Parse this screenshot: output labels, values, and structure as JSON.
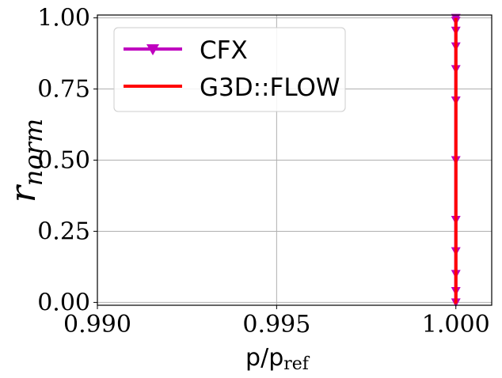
{
  "chart_data": {
    "type": "line",
    "title": "",
    "xlabel_main": "p/p",
    "xlabel_sub": "ref",
    "ylabel_main": "r",
    "ylabel_sub": "norm",
    "xlim": [
      0.99,
      1.001
    ],
    "ylim": [
      -0.01,
      1.01
    ],
    "xticks": [
      0.99,
      0.995,
      1.0
    ],
    "xtick_labels": [
      "0.990",
      "0.995",
      "1.000"
    ],
    "yticks": [
      0.0,
      0.25,
      0.5,
      0.75,
      1.0
    ],
    "ytick_labels": [
      "0.00",
      "0.25",
      "0.50",
      "0.75",
      "1.00"
    ],
    "grid": true,
    "legend_position": "top-left",
    "series": [
      {
        "name": "CFX",
        "color": "#bf00bf",
        "marker": "triangle-down",
        "x": [
          1.0,
          1.0,
          1.0,
          1.0,
          1.0,
          1.0,
          1.0,
          1.0,
          1.0,
          1.0,
          1.0,
          1.0
        ],
        "y": [
          0.0,
          0.04,
          0.1,
          0.18,
          0.29,
          0.5,
          0.71,
          0.82,
          0.9,
          0.955,
          0.99,
          1.0
        ]
      },
      {
        "name": "G3D::FLOW",
        "color": "#ff0000",
        "marker": "none",
        "x": [
          0.99995,
          1.0,
          1.0,
          1.0
        ],
        "y": [
          0.0,
          0.0,
          0.5,
          1.0
        ]
      }
    ]
  }
}
